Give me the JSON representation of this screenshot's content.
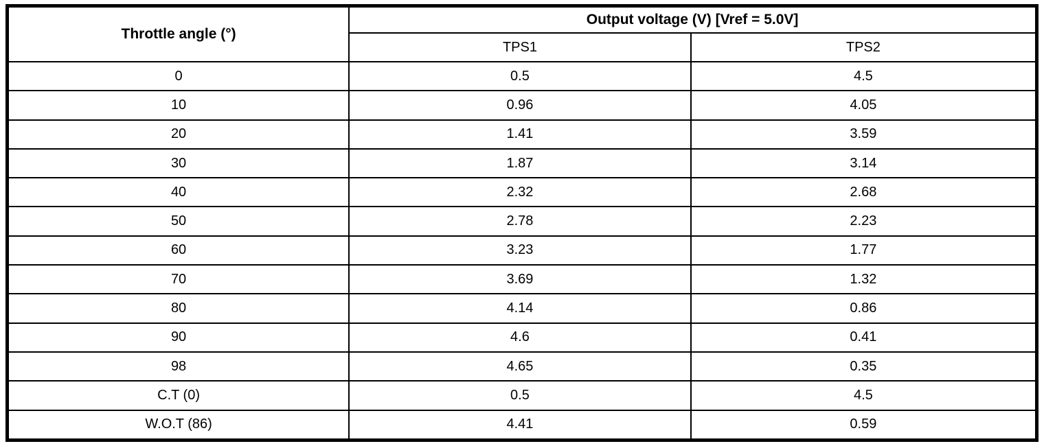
{
  "table": {
    "headers": {
      "throttle_angle": "Throttle angle (°)",
      "output_voltage_group": "Output voltage (V) [Vref = 5.0V]",
      "tps1": "TPS1",
      "tps2": "TPS2"
    },
    "rows": [
      {
        "angle": "0",
        "tps1": "0.5",
        "tps2": "4.5"
      },
      {
        "angle": "10",
        "tps1": "0.96",
        "tps2": "4.05"
      },
      {
        "angle": "20",
        "tps1": "1.41",
        "tps2": "3.59"
      },
      {
        "angle": "30",
        "tps1": "1.87",
        "tps2": "3.14"
      },
      {
        "angle": "40",
        "tps1": "2.32",
        "tps2": "2.68"
      },
      {
        "angle": "50",
        "tps1": "2.78",
        "tps2": "2.23"
      },
      {
        "angle": "60",
        "tps1": "3.23",
        "tps2": "1.77"
      },
      {
        "angle": "70",
        "tps1": "3.69",
        "tps2": "1.32"
      },
      {
        "angle": "80",
        "tps1": "4.14",
        "tps2": "0.86"
      },
      {
        "angle": "90",
        "tps1": "4.6",
        "tps2": "0.41"
      },
      {
        "angle": "98",
        "tps1": "4.65",
        "tps2": "0.35"
      },
      {
        "angle": "C.T (0)",
        "tps1": "0.5",
        "tps2": "4.5"
      },
      {
        "angle": "W.O.T (86)",
        "tps1": "4.41",
        "tps2": "0.59"
      }
    ]
  },
  "chart_data": {
    "type": "table",
    "title": "Output voltage (V) [Vref = 5.0V]",
    "columns": [
      "Throttle angle (°)",
      "TPS1",
      "TPS2"
    ],
    "rows": [
      [
        "0",
        0.5,
        4.5
      ],
      [
        "10",
        0.96,
        4.05
      ],
      [
        "20",
        1.41,
        3.59
      ],
      [
        "30",
        1.87,
        3.14
      ],
      [
        "40",
        2.32,
        2.68
      ],
      [
        "50",
        2.78,
        2.23
      ],
      [
        "60",
        3.23,
        1.77
      ],
      [
        "70",
        3.69,
        1.32
      ],
      [
        "80",
        4.14,
        0.86
      ],
      [
        "90",
        4.6,
        0.41
      ],
      [
        "98",
        4.65,
        0.35
      ],
      [
        "C.T (0)",
        0.5,
        4.5
      ],
      [
        "W.O.T (86)",
        4.41,
        0.59
      ]
    ]
  },
  "colors": {
    "border": "#000000",
    "background": "#ffffff",
    "text": "#000000"
  }
}
